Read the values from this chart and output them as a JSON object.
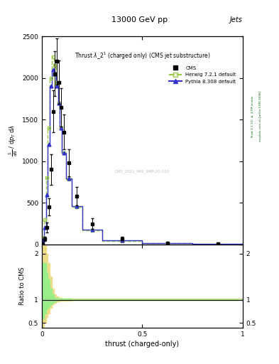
{
  "title_top": "13000 GeV pp",
  "title_top_right": "Jets",
  "plot_title": "Thrust $\\lambda\\_2^1$ (charged only) (CMS jet substructure)",
  "xlabel": "thrust (charged-only)",
  "ylabel_lines": [
    "mathrm d$^2$N",
    "mathrm d$p_T$ mathrm d lambda"
  ],
  "ratio_ylabel": "Ratio to CMS",
  "right_label_top": "Rivet 3.1.10; $\\geq$ 2.7M events",
  "right_label_bottom": "mcplots.cern.ch [arXiv:1306.3436]",
  "watermark": "CMS_2021_PAS_SMP-20-010",
  "cms_label": "CMS",
  "herwig_label": "Herwig 7.2.1 default",
  "pythia_label": "Pythia 8.308 default",
  "thrust_bins": [
    0.0,
    0.01,
    0.02,
    0.03,
    0.04,
    0.05,
    0.06,
    0.07,
    0.08,
    0.09,
    0.1,
    0.12,
    0.15,
    0.2,
    0.3,
    0.5,
    0.75,
    1.0
  ],
  "cms_values": [
    10,
    70,
    200,
    450,
    900,
    1600,
    2050,
    2200,
    1950,
    1650,
    1350,
    980,
    580,
    250,
    70,
    15,
    8
  ],
  "cms_errors": [
    5,
    25,
    60,
    100,
    180,
    250,
    270,
    280,
    260,
    230,
    210,
    160,
    110,
    60,
    20,
    6,
    4
  ],
  "herwig_values": [
    80,
    300,
    800,
    1400,
    2000,
    2250,
    2150,
    1950,
    1700,
    1400,
    1100,
    780,
    450,
    170,
    45,
    12,
    6
  ],
  "pythia_values": [
    50,
    200,
    600,
    1200,
    1900,
    2100,
    2050,
    1900,
    1700,
    1400,
    1100,
    790,
    460,
    175,
    48,
    13,
    7
  ],
  "ylim_main": [
    0,
    2500
  ],
  "ylim_ratio": [
    0.4,
    2.2
  ],
  "yticks_main": [
    0,
    500,
    1000,
    1500,
    2000,
    2500
  ],
  "ytick_labels_main": [
    "0",
    "500",
    "1000",
    "1500",
    "2000",
    "2500"
  ],
  "yticks_ratio": [
    0.5,
    1.0,
    2.0
  ],
  "ytick_labels_ratio": [
    "0.5",
    "1",
    "2"
  ],
  "xticks": [
    0.0,
    0.5,
    1.0
  ],
  "xtick_labels": [
    "0",
    "0.5",
    "1"
  ],
  "color_cms": "#000000",
  "color_herwig": "#99cc44",
  "color_pythia": "#3333cc",
  "color_herwig_yellow_band_lo": [
    0.4,
    0.5,
    0.62,
    0.7,
    0.82,
    0.9,
    0.94,
    0.96,
    0.97,
    0.98,
    0.98,
    0.98,
    0.99,
    0.99,
    0.99,
    0.99,
    0.99
  ],
  "color_herwig_yellow_band_hi": [
    2.2,
    2.2,
    2.0,
    1.8,
    1.5,
    1.25,
    1.12,
    1.08,
    1.05,
    1.04,
    1.03,
    1.03,
    1.02,
    1.02,
    1.02,
    1.02,
    1.02
  ],
  "color_herwig_green_band_lo": [
    0.6,
    0.7,
    0.8,
    0.85,
    0.9,
    0.94,
    0.97,
    0.98,
    0.99,
    0.99,
    0.99,
    0.99,
    0.995,
    0.995,
    0.995,
    0.995,
    0.995
  ],
  "color_herwig_green_band_hi": [
    1.8,
    1.8,
    1.6,
    1.45,
    1.25,
    1.12,
    1.05,
    1.04,
    1.03,
    1.02,
    1.02,
    1.02,
    1.01,
    1.01,
    1.01,
    1.01,
    1.01
  ],
  "color_yellow_band": "#eedd88",
  "color_green_band": "#99ee88",
  "background_color": "#ffffff",
  "fig_width": 3.93,
  "fig_height": 5.12,
  "dpi": 100
}
